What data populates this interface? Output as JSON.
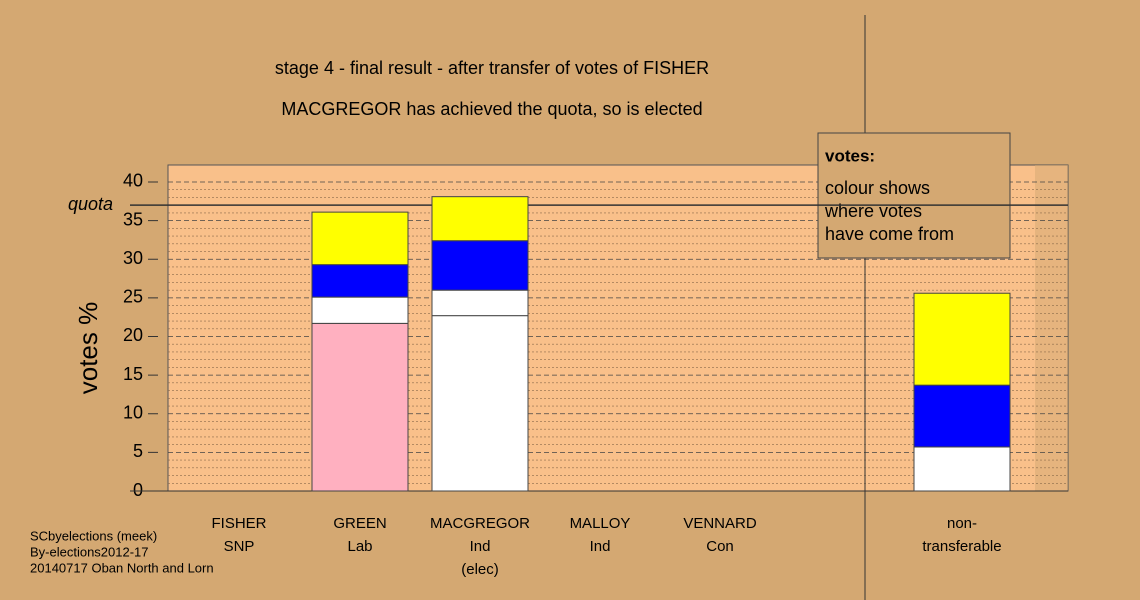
{
  "chart_data": {
    "type": "stacked_bar",
    "title": "stage 4 - final result - after transfer of votes of FISHER",
    "subtitle": "MACGREGOR has achieved the quota, so is elected",
    "y_label": "votes %",
    "categories": [
      [
        "FISHER",
        "SNP"
      ],
      [
        "GREEN",
        "Lab"
      ],
      [
        "MACGREGOR",
        "Ind",
        "(elec)"
      ],
      [
        "MALLOY",
        "Ind"
      ],
      [
        "VENNARD",
        "Con"
      ],
      [
        "non-",
        "transferable"
      ]
    ],
    "series": [
      {
        "color": "#ffb0c0",
        "values": [
          0,
          21.7,
          0,
          0,
          0,
          0
        ]
      },
      {
        "color": "#ffffff",
        "values": [
          0,
          0,
          22.7,
          0,
          0,
          0
        ]
      },
      {
        "color": "#ffffff",
        "values": [
          0,
          3.4,
          3.3,
          0,
          0,
          5.7
        ]
      },
      {
        "color": "#0000ff",
        "values": [
          0,
          4.2,
          6.4,
          0,
          0,
          8.0
        ]
      },
      {
        "color": "#ffff00",
        "values": [
          0,
          6.8,
          5.7,
          0,
          0,
          11.9
        ]
      }
    ],
    "quota": {
      "value": 37,
      "label": "quota"
    },
    "ylim": [
      0,
      42.2
    ],
    "yticks": [
      0,
      5,
      10,
      15,
      20,
      25,
      30,
      35,
      40
    ],
    "grid": true,
    "legend": {
      "title": "votes:",
      "lines": [
        "colour shows",
        "where votes",
        "have come from"
      ]
    },
    "footer": [
      "SCbyelections (meek)",
      "By-elections2012-17",
      "20140717 Oban North and Lorn"
    ]
  }
}
